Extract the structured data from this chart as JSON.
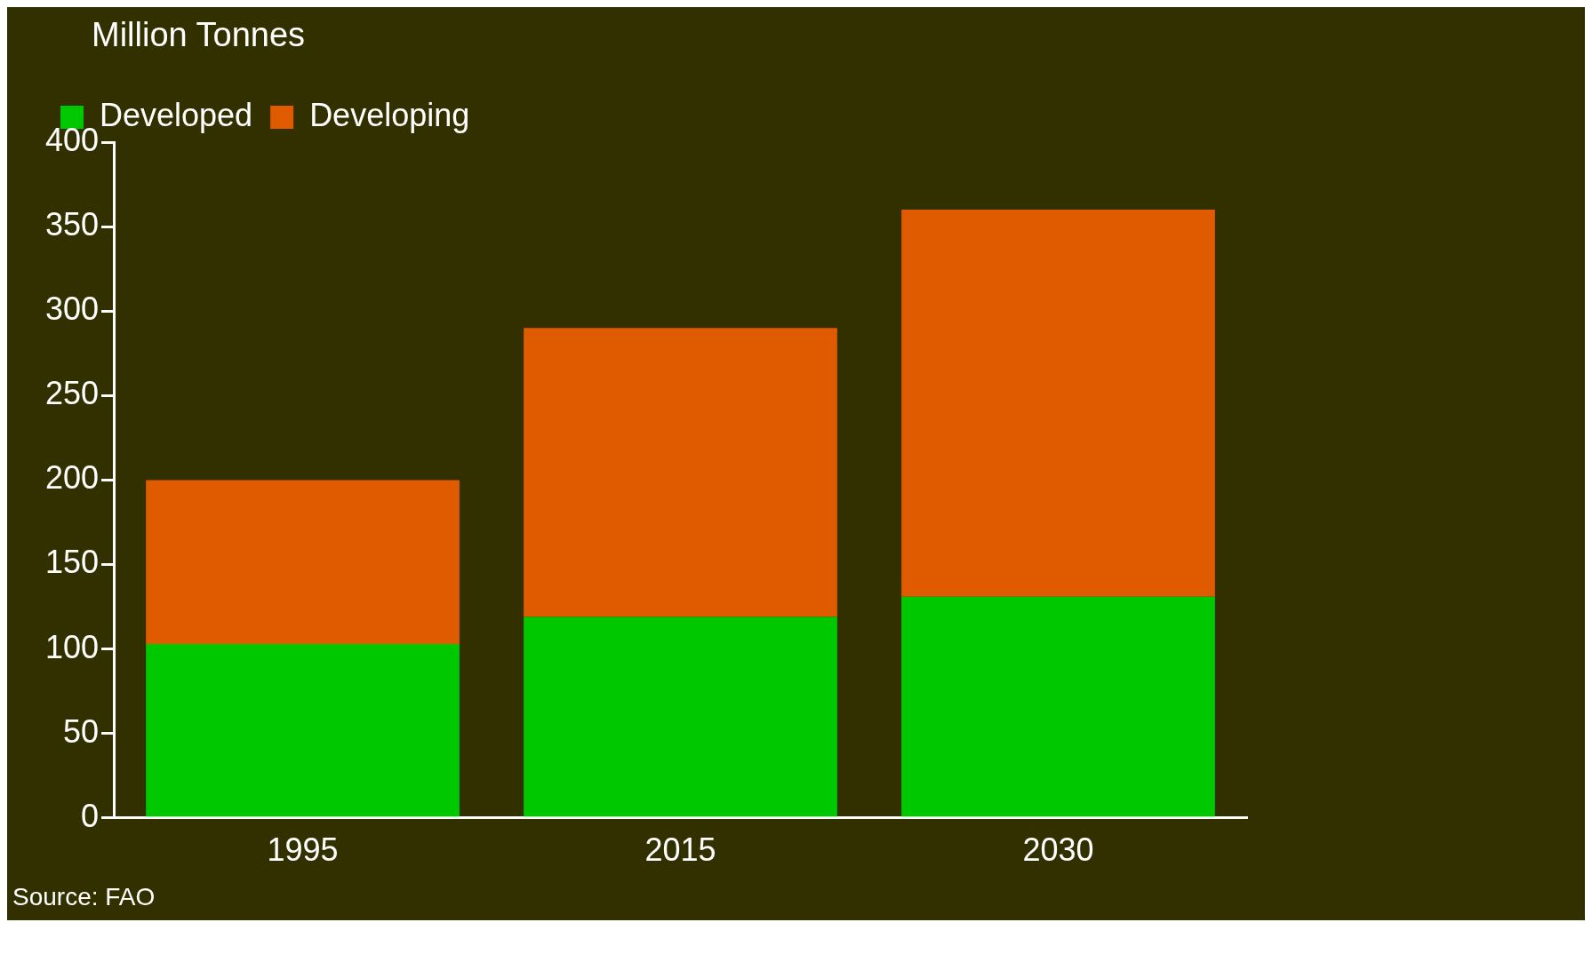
{
  "chart_data": {
    "type": "bar",
    "ylabel": "Million Tonnes",
    "categories": [
      "1995",
      "2015",
      "2030"
    ],
    "stacked": true,
    "series": [
      {
        "name": "Developed",
        "color": "#00c800",
        "values": [
          103,
          119,
          131
        ]
      },
      {
        "name": "Developing",
        "color": "#e05a00",
        "values": [
          97,
          171,
          229
        ]
      }
    ],
    "ylim": [
      0,
      400
    ],
    "yticks": [
      0,
      50,
      100,
      150,
      200,
      250,
      300,
      350,
      400
    ],
    "grid": false,
    "legend": "top left",
    "annotations": [
      "Source: FAO"
    ]
  }
}
